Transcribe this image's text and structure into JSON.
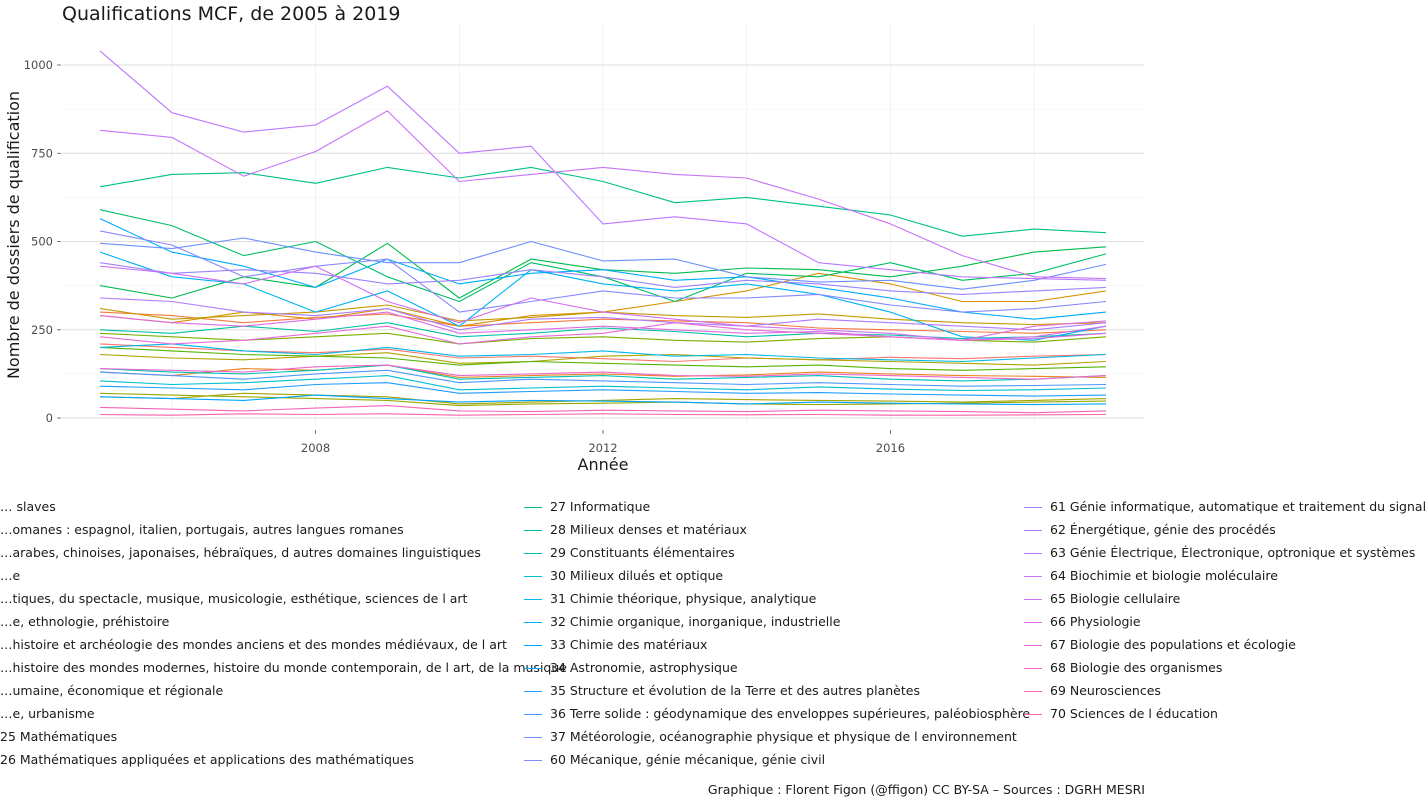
{
  "title": "Qualifications MCF, de 2005 à 2019",
  "caption": "Graphique : Florent Figon (@ffigon) CC BY-SA – Sources : DGRH MESRI",
  "chart_data": {
    "type": "line",
    "xlabel": "Année",
    "ylabel": "Nombre de dossiers de qualification",
    "xlim": [
      2005,
      2019
    ],
    "ylim": [
      0,
      1050
    ],
    "x_ticks": [
      "2008",
      "2012",
      "2016"
    ],
    "y_ticks": [
      "0",
      "250",
      "500",
      "750",
      "1000"
    ],
    "grid": true,
    "legend_position": "bottom",
    "x": [
      2005,
      2006,
      2007,
      2008,
      2009,
      2010,
      2011,
      2012,
      2013,
      2014,
      2015,
      2016,
      2017,
      2018,
      2019
    ],
    "series": [
      {
        "name": "… slaves",
        "color": "#F8766D",
        "values": [
          210,
          200,
          190,
          185,
          195,
          170,
          175,
          168,
          160,
          170,
          165,
          172,
          168,
          175,
          180
        ]
      },
      {
        "name": "…omanes : espagnol, italien, portugais, autres langues romanes",
        "color": "#F47A3F",
        "values": [
          300,
          290,
          270,
          285,
          295,
          260,
          270,
          280,
          275,
          270,
          255,
          250,
          245,
          240,
          250
        ]
      },
      {
        "name": "…arabes, chinoises, japonaises, hébraïques, d autres domaines linguistiques",
        "color": "#E8851E",
        "values": [
          130,
          120,
          140,
          135,
          150,
          115,
          120,
          125,
          118,
          122,
          130,
          125,
          120,
          118,
          115
        ]
      },
      {
        "name": "…e",
        "color": "#D89000",
        "values": [
          290,
          270,
          300,
          280,
          310,
          260,
          290,
          300,
          330,
          360,
          410,
          380,
          330,
          330,
          360
        ]
      },
      {
        "name": "…tiques, du spectacle, musique, musicologie, esthétique, sciences de l art",
        "color": "#C49A00",
        "values": [
          310,
          280,
          290,
          300,
          320,
          275,
          285,
          300,
          290,
          285,
          295,
          280,
          270,
          265,
          270
        ]
      },
      {
        "name": "…e, ethnologie, préhistoire",
        "color": "#B2A200",
        "values": [
          180,
          170,
          165,
          175,
          185,
          155,
          160,
          175,
          180,
          170,
          165,
          160,
          155,
          150,
          160
        ]
      },
      {
        "name": "…histoire et archéologie des mondes anciens et des mondes médiévaux, de l art",
        "color": "#A3A500",
        "values": [
          60,
          55,
          70,
          65,
          60,
          40,
          45,
          50,
          55,
          52,
          50,
          48,
          45,
          50,
          55
        ]
      },
      {
        "name": "…histoire des mondes modernes, histoire du monde contemporain, de l art, de la musique",
        "color": "#99A800",
        "values": [
          70,
          65,
          60,
          55,
          50,
          35,
          40,
          42,
          45,
          40,
          38,
          40,
          42,
          45,
          48
        ]
      },
      {
        "name": "…umaine, économique et régionale",
        "color": "#7CAE00",
        "values": [
          240,
          230,
          220,
          230,
          240,
          210,
          225,
          230,
          220,
          215,
          225,
          230,
          220,
          215,
          230
        ]
      },
      {
        "name": "…e, urbanisme",
        "color": "#53B400",
        "values": [
          200,
          190,
          180,
          175,
          170,
          150,
          160,
          155,
          150,
          145,
          150,
          140,
          135,
          140,
          145
        ]
      },
      {
        "name": "25 Mathématiques",
        "color": "#00BB4E",
        "values": [
          375,
          340,
          400,
          370,
          495,
          340,
          450,
          420,
          410,
          425,
          420,
          400,
          430,
          470,
          485
        ]
      },
      {
        "name": "26 Mathématiques appliquées et applications des mathématiques",
        "color": "#00BE67",
        "values": [
          590,
          545,
          460,
          500,
          400,
          330,
          440,
          400,
          330,
          410,
          400,
          440,
          390,
          410,
          465
        ]
      },
      {
        "name": "27 Informatique",
        "color": "#00C08B",
        "values": [
          655,
          690,
          695,
          665,
          710,
          680,
          710,
          670,
          610,
          625,
          600,
          575,
          515,
          535,
          525
        ]
      },
      {
        "name": "28 Milieux denses et matériaux",
        "color": "#00C1A3",
        "values": [
          250,
          240,
          260,
          245,
          270,
          230,
          240,
          255,
          245,
          230,
          240,
          235,
          225,
          230,
          240
        ]
      },
      {
        "name": "29 Constituants élémentaires",
        "color": "#00C0B8",
        "values": [
          140,
          130,
          125,
          135,
          150,
          110,
          115,
          120,
          110,
          115,
          120,
          110,
          105,
          110,
          120
        ]
      },
      {
        "name": "30 Milieux dilués et optique",
        "color": "#00BDD2",
        "values": [
          105,
          95,
          100,
          110,
          120,
          80,
          85,
          90,
          85,
          80,
          88,
          82,
          78,
          80,
          85
        ]
      },
      {
        "name": "31 Chimie théorique, physique, analytique",
        "color": "#00B8E5",
        "values": [
          200,
          210,
          190,
          180,
          200,
          175,
          180,
          190,
          175,
          180,
          170,
          165,
          160,
          170,
          180
        ]
      },
      {
        "name": "32 Chimie organique, inorganique, industrielle",
        "color": "#00B2F3",
        "values": [
          470,
          400,
          380,
          300,
          360,
          260,
          420,
          380,
          360,
          380,
          350,
          300,
          230,
          220,
          260
        ]
      },
      {
        "name": "33 Chimie des matériaux",
        "color": "#00ABFD",
        "values": [
          565,
          470,
          430,
          370,
          450,
          380,
          410,
          420,
          390,
          400,
          370,
          340,
          300,
          280,
          300
        ]
      },
      {
        "name": "34 Astronomie, astrophysique",
        "color": "#00A5FF",
        "values": [
          60,
          55,
          50,
          65,
          55,
          45,
          50,
          48,
          45,
          40,
          45,
          42,
          40,
          38,
          40
        ]
      },
      {
        "name": "35 Structure et évolution de la Terre et des autres planètes",
        "color": "#1F9EFF",
        "values": [
          90,
          85,
          80,
          95,
          100,
          70,
          75,
          80,
          75,
          70,
          72,
          68,
          65,
          62,
          65
        ]
      },
      {
        "name": "36 Terre solide : géodynamique des enveloppes supérieures, paléobiosphère",
        "color": "#4C97FF",
        "values": [
          130,
          120,
          110,
          125,
          135,
          100,
          110,
          105,
          100,
          95,
          100,
          95,
          90,
          92,
          95
        ]
      },
      {
        "name": "37 Météorologie, océanographie physique et physique de l environnement",
        "color": "#6D8FFF",
        "values": [
          495,
          480,
          510,
          470,
          440,
          440,
          500,
          445,
          450,
          400,
          385,
          390,
          365,
          390,
          435
        ]
      },
      {
        "name": "60 Mécanique, génie mécanique, génie civil",
        "color": "#8788FF",
        "values": [
          530,
          490,
          400,
          430,
          450,
          300,
          330,
          360,
          340,
          340,
          350,
          320,
          300,
          310,
          330
        ]
      },
      {
        "name": "61 Génie informatique, automatique et traitement du signal",
        "color": "#9B82FF",
        "values": [
          440,
          410,
          420,
          410,
          380,
          390,
          420,
          400,
          370,
          390,
          380,
          360,
          350,
          360,
          370
        ]
      },
      {
        "name": "62 Énergétique, génie des procédés",
        "color": "#AD7CFF",
        "values": [
          340,
          330,
          300,
          290,
          310,
          250,
          280,
          285,
          270,
          260,
          280,
          270,
          260,
          250,
          270
        ]
      },
      {
        "name": "63 Génie Électrique, Électronique, optronique et systèmes",
        "color": "#BB77FF",
        "values": [
          1040,
          865,
          810,
          830,
          940,
          750,
          770,
          550,
          570,
          550,
          440,
          420,
          400,
          395,
          390
        ]
      },
      {
        "name": "64 Biochimie et biologie moléculaire",
        "color": "#C873F8",
        "values": [
          815,
          795,
          685,
          755,
          870,
          670,
          690,
          710,
          690,
          680,
          620,
          550,
          460,
          400,
          395
        ]
      },
      {
        "name": "65 Biologie cellulaire",
        "color": "#D36FF0",
        "values": [
          430,
          410,
          380,
          430,
          330,
          270,
          340,
          300,
          280,
          260,
          250,
          240,
          220,
          230,
          260
        ]
      },
      {
        "name": "66 Physiologie",
        "color": "#DE6BE6",
        "values": [
          290,
          270,
          260,
          280,
          300,
          240,
          250,
          260,
          250,
          240,
          245,
          230,
          220,
          225,
          240
        ]
      },
      {
        "name": "67 Biologie des populations et écologie",
        "color": "#E76BDA",
        "values": [
          230,
          210,
          220,
          240,
          260,
          210,
          230,
          240,
          270,
          250,
          240,
          230,
          220,
          260,
          275
        ]
      },
      {
        "name": "68 Biologie des organismes",
        "color": "#EF67CC",
        "values": [
          140,
          135,
          130,
          145,
          150,
          120,
          125,
          130,
          120,
          118,
          125,
          120,
          115,
          110,
          120
        ]
      },
      {
        "name": "69 Neurosciences",
        "color": "#F564BC",
        "values": [
          30,
          25,
          20,
          28,
          35,
          20,
          18,
          22,
          20,
          18,
          22,
          20,
          18,
          15,
          20
        ]
      },
      {
        "name": "70 Sciences de l éducation",
        "color": "#FA62AA",
        "values": [
          10,
          8,
          12,
          10,
          12,
          8,
          10,
          12,
          10,
          9,
          10,
          8,
          8,
          9,
          10
        ]
      }
    ]
  }
}
